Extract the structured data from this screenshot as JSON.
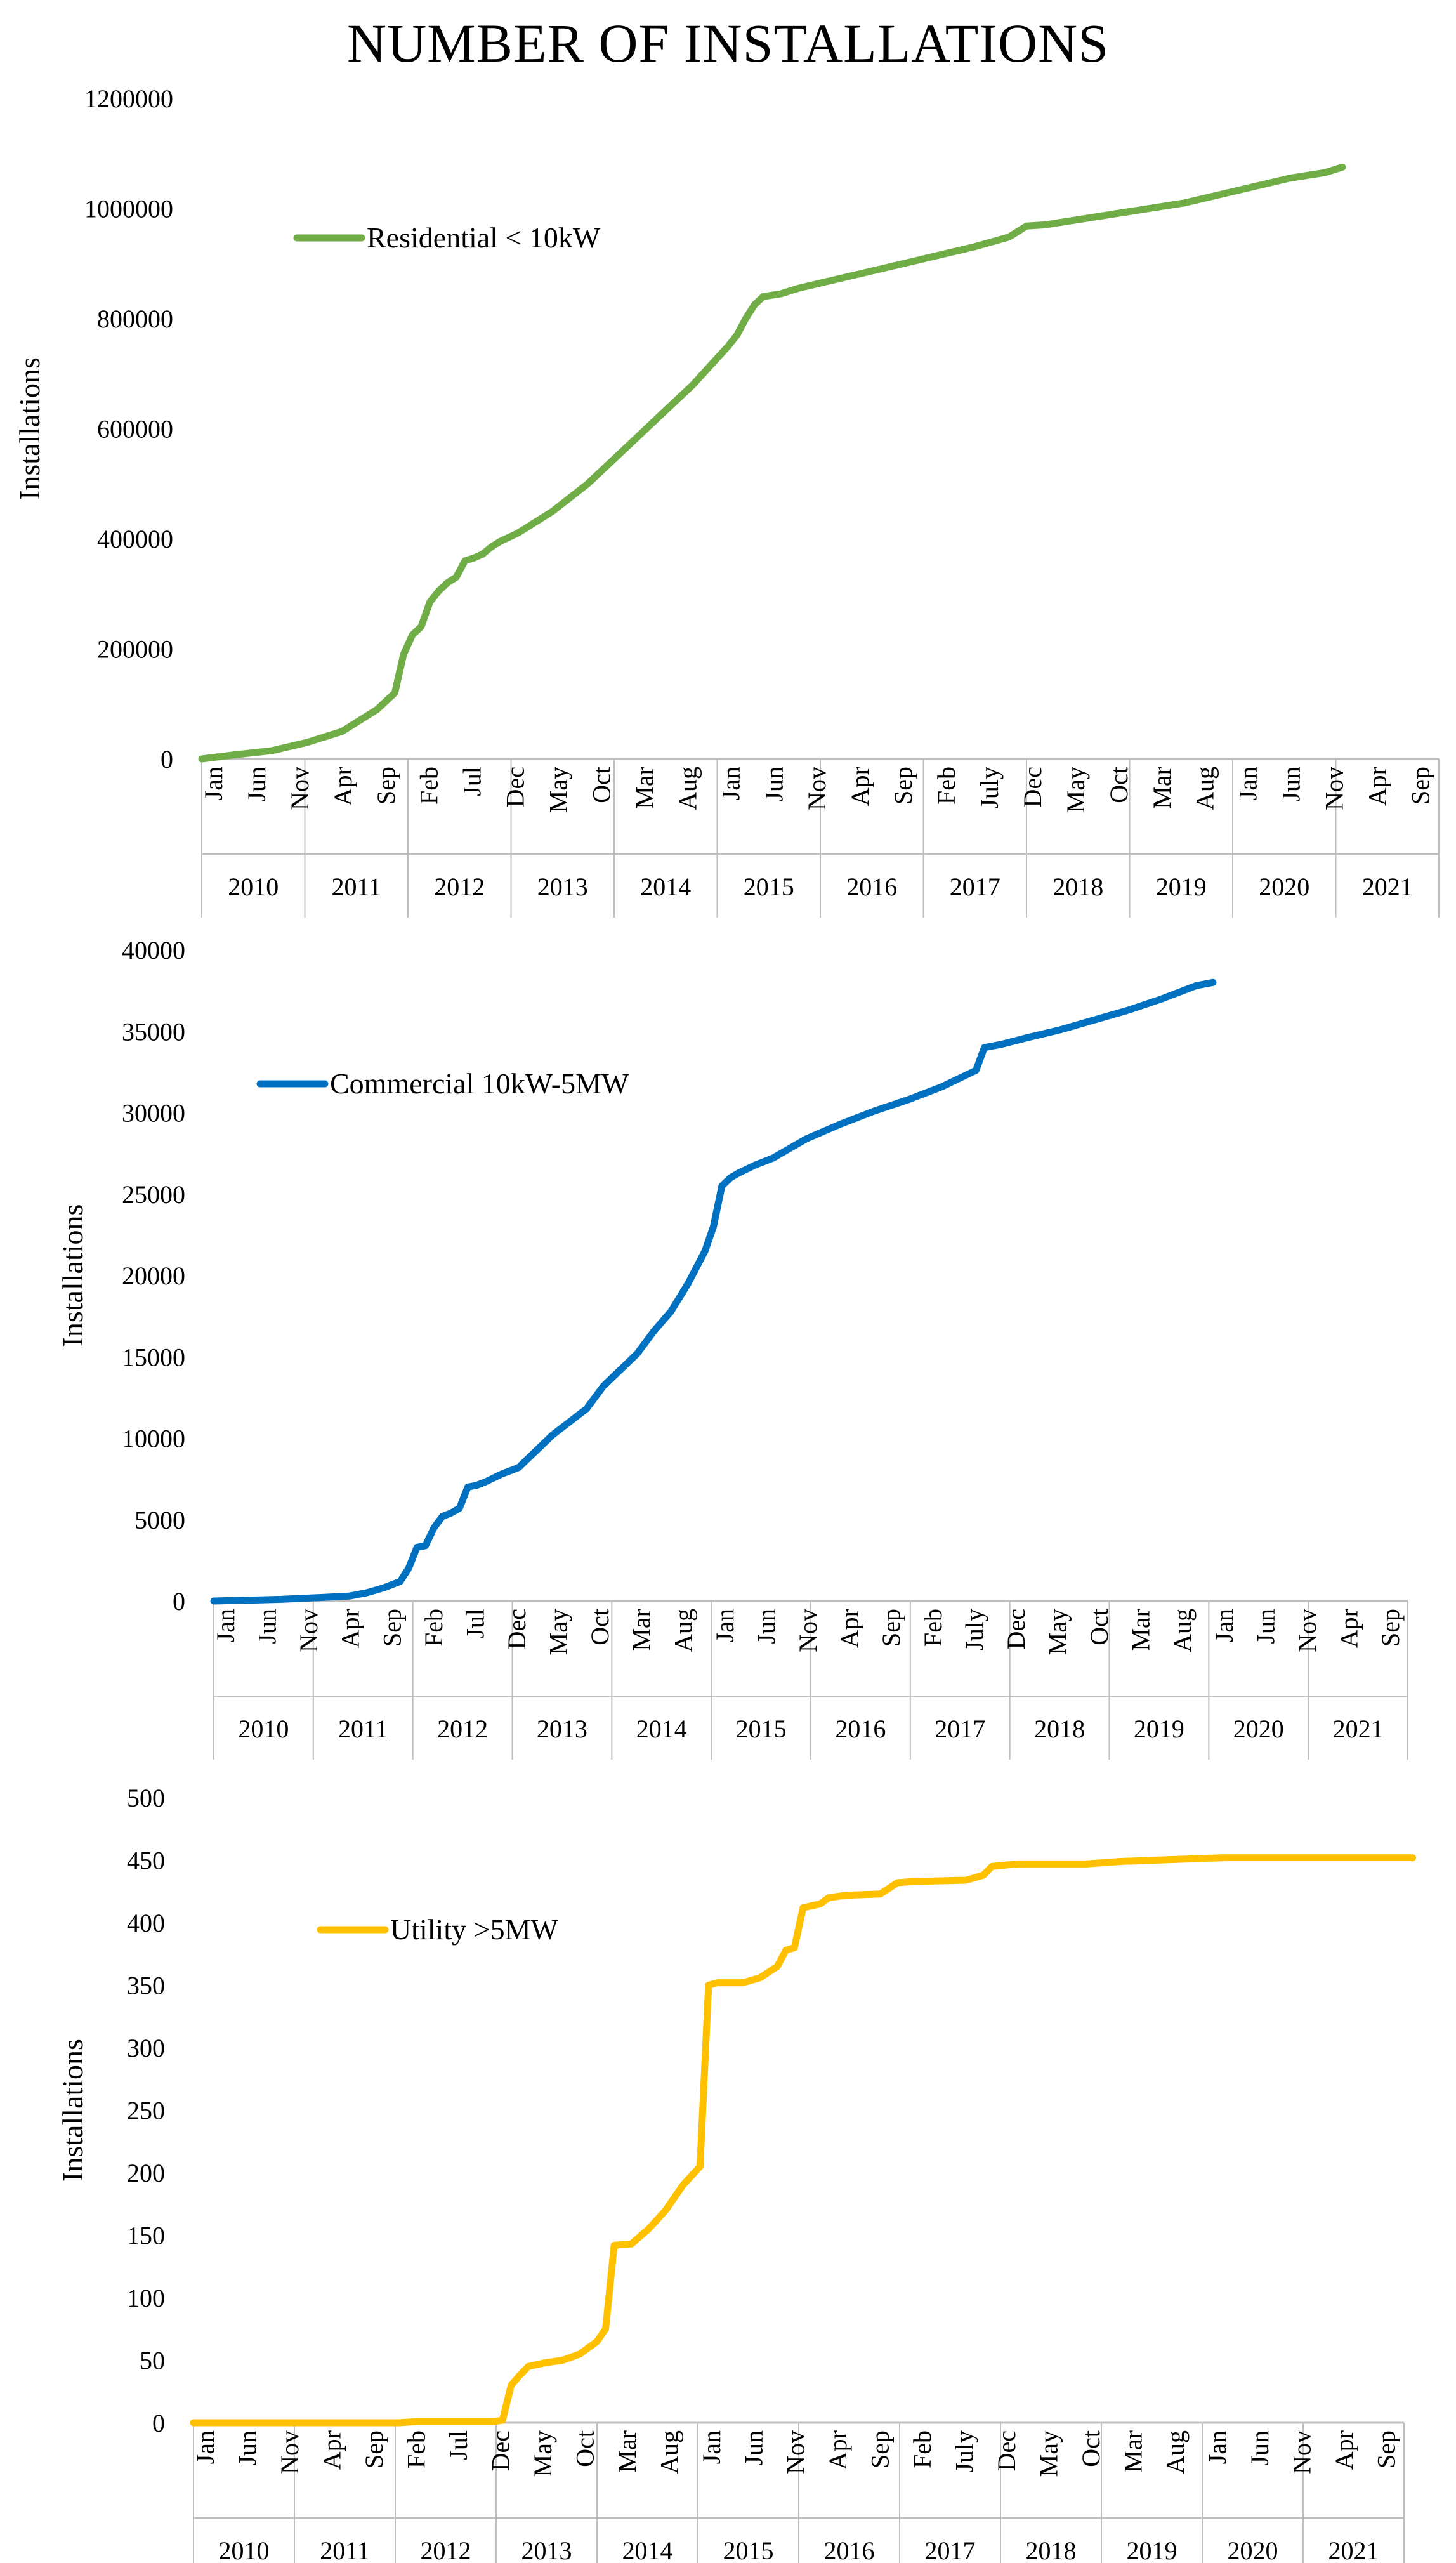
{
  "title": "NUMBER OF INSTALLATIONS",
  "chart_data": [
    {
      "type": "line",
      "name": "residential",
      "legend": "Residential < 10kW",
      "color": "#70AD47",
      "ylabel": "Installations",
      "yticks": [
        "0",
        "200000",
        "400000",
        "600000",
        "800000",
        "1000000",
        "1200000"
      ],
      "ylim": [
        0,
        1200000
      ],
      "x_range": [
        0,
        141
      ],
      "month_labels": [
        "Jan",
        "Jun",
        "Nov",
        "Apr",
        "Sep",
        "Feb",
        "Jul",
        "Dec",
        "May",
        "Oct",
        "Mar",
        "Aug",
        "Jan",
        "Jun",
        "Nov",
        "Apr",
        "Sep",
        "Feb",
        "July",
        "Dec",
        "May",
        "Oct",
        "Mar",
        "Aug",
        "Jan",
        "Jun",
        "Nov",
        "Apr",
        "Sep"
      ],
      "years": [
        "2010",
        "2011",
        "2012",
        "2013",
        "2014",
        "2015",
        "2016",
        "2017",
        "2018",
        "2019",
        "2020",
        "2021"
      ],
      "points": [
        [
          0,
          0
        ],
        [
          4,
          8000
        ],
        [
          8,
          15000
        ],
        [
          12,
          30000
        ],
        [
          16,
          50000
        ],
        [
          18,
          70000
        ],
        [
          20,
          90000
        ],
        [
          22,
          120000
        ],
        [
          23,
          190000
        ],
        [
          24,
          225000
        ],
        [
          25,
          240000
        ],
        [
          26,
          285000
        ],
        [
          27,
          305000
        ],
        [
          28,
          320000
        ],
        [
          29,
          330000
        ],
        [
          30,
          360000
        ],
        [
          31,
          365000
        ],
        [
          32,
          372000
        ],
        [
          33,
          385000
        ],
        [
          34,
          395000
        ],
        [
          36,
          410000
        ],
        [
          38,
          430000
        ],
        [
          40,
          450000
        ],
        [
          42,
          475000
        ],
        [
          44,
          500000
        ],
        [
          46,
          530000
        ],
        [
          48,
          560000
        ],
        [
          50,
          590000
        ],
        [
          52,
          620000
        ],
        [
          54,
          650000
        ],
        [
          56,
          680000
        ],
        [
          58,
          715000
        ],
        [
          60,
          750000
        ],
        [
          61,
          770000
        ],
        [
          62,
          800000
        ],
        [
          63,
          825000
        ],
        [
          64,
          840000
        ],
        [
          66,
          845000
        ],
        [
          68,
          855000
        ],
        [
          72,
          870000
        ],
        [
          76,
          885000
        ],
        [
          80,
          900000
        ],
        [
          84,
          915000
        ],
        [
          88,
          930000
        ],
        [
          92,
          948000
        ],
        [
          94,
          968000
        ],
        [
          96,
          970000
        ],
        [
          100,
          980000
        ],
        [
          104,
          990000
        ],
        [
          108,
          1000000
        ],
        [
          112,
          1010000
        ],
        [
          116,
          1025000
        ],
        [
          120,
          1040000
        ],
        [
          124,
          1055000
        ],
        [
          128,
          1065000
        ],
        [
          130,
          1075000
        ]
      ]
    },
    {
      "type": "line",
      "name": "commercial",
      "legend": "Commercial 10kW-5MW",
      "color": "#0070C0",
      "ylabel": "Installations",
      "yticks": [
        "0",
        "5000",
        "10000",
        "15000",
        "20000",
        "25000",
        "30000",
        "35000",
        "40000"
      ],
      "ylim": [
        0,
        40000
      ],
      "x_range": [
        0,
        141
      ],
      "month_labels": [
        "Jan",
        "Jun",
        "Nov",
        "Apr",
        "Sep",
        "Feb",
        "Jul",
        "Dec",
        "May",
        "Oct",
        "Mar",
        "Aug",
        "Jan",
        "Jun",
        "Nov",
        "Apr",
        "Sep",
        "Feb",
        "July",
        "Dec",
        "May",
        "Oct",
        "Mar",
        "Aug",
        "Jan",
        "Jun",
        "Nov",
        "Apr",
        "Sep"
      ],
      "years": [
        "2010",
        "2011",
        "2012",
        "2013",
        "2014",
        "2015",
        "2016",
        "2017",
        "2018",
        "2019",
        "2020",
        "2021"
      ],
      "points": [
        [
          0,
          0
        ],
        [
          4,
          50
        ],
        [
          8,
          100
        ],
        [
          12,
          200
        ],
        [
          16,
          300
        ],
        [
          18,
          500
        ],
        [
          20,
          800
        ],
        [
          22,
          1200
        ],
        [
          23,
          2000
        ],
        [
          24,
          3300
        ],
        [
          25,
          3400
        ],
        [
          26,
          4500
        ],
        [
          27,
          5200
        ],
        [
          28,
          5400
        ],
        [
          29,
          5700
        ],
        [
          30,
          7000
        ],
        [
          31,
          7100
        ],
        [
          32,
          7300
        ],
        [
          34,
          7800
        ],
        [
          36,
          8200
        ],
        [
          38,
          9200
        ],
        [
          40,
          10200
        ],
        [
          42,
          11000
        ],
        [
          44,
          11800
        ],
        [
          46,
          13200
        ],
        [
          48,
          14200
        ],
        [
          50,
          15200
        ],
        [
          52,
          16600
        ],
        [
          54,
          17800
        ],
        [
          56,
          19500
        ],
        [
          58,
          21500
        ],
        [
          59,
          23000
        ],
        [
          60,
          25500
        ],
        [
          61,
          26000
        ],
        [
          62,
          26300
        ],
        [
          64,
          26800
        ],
        [
          66,
          27200
        ],
        [
          68,
          27800
        ],
        [
          70,
          28400
        ],
        [
          74,
          29300
        ],
        [
          78,
          30100
        ],
        [
          82,
          30800
        ],
        [
          86,
          31600
        ],
        [
          90,
          32600
        ],
        [
          91,
          34000
        ],
        [
          93,
          34200
        ],
        [
          96,
          34600
        ],
        [
          100,
          35100
        ],
        [
          104,
          35700
        ],
        [
          108,
          36300
        ],
        [
          112,
          37000
        ],
        [
          116,
          37800
        ],
        [
          118,
          38000
        ]
      ]
    },
    {
      "type": "line",
      "name": "utility",
      "legend": "Utility >5MW",
      "color": "#FFC000",
      "ylabel": "Installations",
      "yticks": [
        "0",
        "50",
        "100",
        "150",
        "200",
        "250",
        "300",
        "350",
        "400",
        "450",
        "500"
      ],
      "ylim": [
        0,
        500
      ],
      "x_range": [
        0,
        141
      ],
      "month_labels": [
        "Jan",
        "Jun",
        "Nov",
        "Apr",
        "Sep",
        "Feb",
        "Jul",
        "Dec",
        "May",
        "Oct",
        "Mar",
        "Aug",
        "Jan",
        "Jun",
        "Nov",
        "Apr",
        "Sep",
        "Feb",
        "July",
        "Dec",
        "May",
        "Oct",
        "Mar",
        "Aug",
        "Jan",
        "Jun",
        "Nov",
        "Apr",
        "Sep"
      ],
      "years": [
        "2010",
        "2011",
        "2012",
        "2013",
        "2014",
        "2015",
        "2016",
        "2017",
        "2018",
        "2019",
        "2020",
        "2021"
      ],
      "points": [
        [
          0,
          0
        ],
        [
          24,
          0
        ],
        [
          26,
          1
        ],
        [
          35,
          1
        ],
        [
          36,
          2
        ],
        [
          37,
          30
        ],
        [
          38,
          38
        ],
        [
          39,
          45
        ],
        [
          41,
          48
        ],
        [
          43,
          50
        ],
        [
          45,
          55
        ],
        [
          47,
          65
        ],
        [
          48,
          75
        ],
        [
          49,
          142
        ],
        [
          51,
          143
        ],
        [
          53,
          155
        ],
        [
          55,
          170
        ],
        [
          56,
          180
        ],
        [
          57,
          190
        ],
        [
          59,
          205
        ],
        [
          60,
          350
        ],
        [
          61,
          352
        ],
        [
          64,
          352
        ],
        [
          66,
          356
        ],
        [
          68,
          365
        ],
        [
          69,
          378
        ],
        [
          70,
          380
        ],
        [
          71,
          412
        ],
        [
          73,
          415
        ],
        [
          74,
          420
        ],
        [
          76,
          422
        ],
        [
          80,
          423
        ],
        [
          82,
          432
        ],
        [
          84,
          433
        ],
        [
          90,
          434
        ],
        [
          92,
          438
        ],
        [
          93,
          445
        ],
        [
          96,
          447
        ],
        [
          104,
          447
        ],
        [
          108,
          449
        ],
        [
          112,
          450
        ],
        [
          120,
          452
        ],
        [
          130,
          452
        ],
        [
          142,
          452
        ]
      ]
    }
  ]
}
